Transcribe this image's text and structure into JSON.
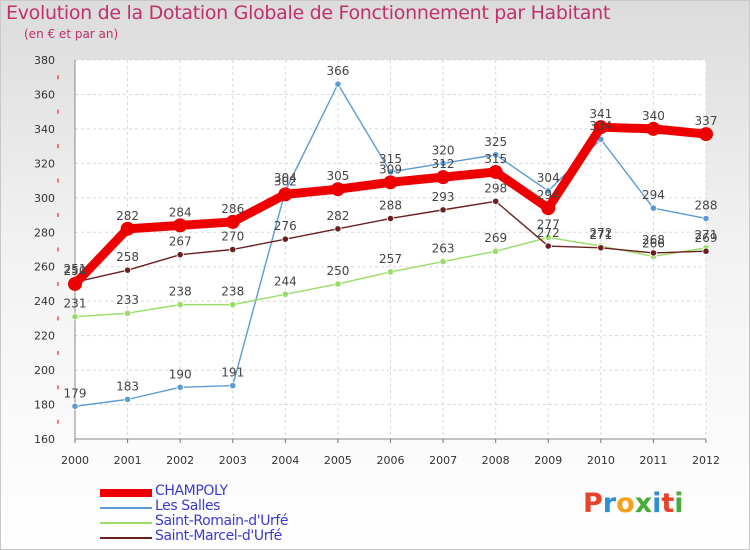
{
  "header": {
    "title": "Evolution de la Dotation Globale de Fonctionnement par Habitant",
    "subtitle": "(en € et par an)"
  },
  "logo": {
    "text": "Proxiti",
    "letters": [
      "P",
      "r",
      "o",
      "x",
      "i",
      "t",
      "i"
    ],
    "colors": [
      "#e8412c",
      "#2d8fd8",
      "#f4a21d",
      "#4aaa3a",
      "#2d8fd8",
      "#e8412c",
      "#4aaa3a"
    ]
  },
  "chart_data": {
    "type": "line",
    "title": "Evolution de la Dotation Globale de Fonctionnement par Habitant",
    "subtitle": "(en € et par an)",
    "xlabel": "",
    "ylabel": "",
    "x": [
      "2000",
      "2001",
      "2002",
      "2003",
      "2004",
      "2005",
      "2006",
      "2007",
      "2008",
      "2009",
      "2010",
      "2011",
      "2012"
    ],
    "ylim": [
      160,
      380
    ],
    "yticks": [
      160,
      180,
      200,
      220,
      240,
      260,
      280,
      300,
      320,
      340,
      360,
      380
    ],
    "grid": true,
    "legend_position": "bottom-left",
    "series": [
      {
        "name": "CHAMPOLY",
        "color": "#ee0000",
        "emphasis": "thick",
        "values": [
          250,
          282,
          284,
          286,
          302,
          305,
          309,
          312,
          315,
          294,
          341,
          340,
          337
        ]
      },
      {
        "name": "Les Salles",
        "color": "#5b9bd5",
        "emphasis": "thin",
        "values": [
          179,
          183,
          190,
          191,
          304,
          366,
          315,
          320,
          325,
          304,
          334,
          294,
          288
        ]
      },
      {
        "name": "Saint-Romain-d'Urfé",
        "color": "#99dd66",
        "emphasis": "thin",
        "values": [
          231,
          233,
          238,
          238,
          244,
          250,
          257,
          263,
          269,
          277,
          272,
          266,
          271
        ]
      },
      {
        "name": "Saint-Marcel-d'Urfé",
        "color": "#6b2020",
        "emphasis": "thin",
        "values": [
          251,
          258,
          267,
          270,
          276,
          282,
          288,
          293,
          298,
          272,
          271,
          268,
          269
        ]
      }
    ]
  }
}
